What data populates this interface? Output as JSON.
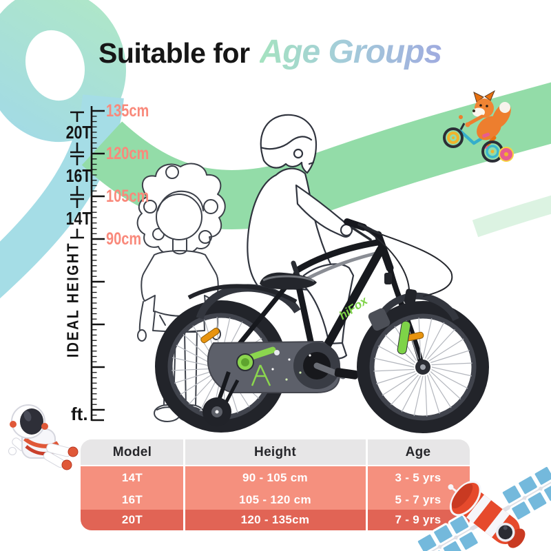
{
  "title": {
    "prefix": "Suitable for",
    "highlight": "Age Groups"
  },
  "ruler": {
    "ideal_height_label": "IDEAL HEIGHT",
    "unit_label": "ft.",
    "height_marks": [
      "135cm",
      "120cm",
      "105cm",
      "90cm"
    ],
    "model_marks": [
      "20T",
      "16T",
      "14T"
    ]
  },
  "bike": {
    "brand": "hiFox"
  },
  "size_table": {
    "headers": [
      "Model",
      "Height",
      "Age"
    ],
    "rows": [
      [
        "14T",
        "90 - 105 cm",
        "3 - 5 yrs"
      ],
      [
        "16T",
        "105 - 120 cm",
        "5 - 7 yrs"
      ],
      [
        "20T",
        "120 - 135cm",
        "7 - 9 yrs"
      ]
    ]
  },
  "decorations": {
    "fox": "fox-riding-bike",
    "astronaut": "astronaut-toy",
    "satellite": "satellite-toy"
  },
  "colors": {
    "salmon_text": "#F9897B",
    "table_header_bg": "#E7E6E7",
    "table_row_bg": "#F5907E",
    "table_row_dark_bg": "#E16455",
    "ribbon_teal": "#A3DBE4",
    "ribbon_mint": "#AEE6C9",
    "ribbon_green": "#93DCA8",
    "brand_green": "#7ED348",
    "title_gradient_start": "#A5E3C0",
    "title_gradient_end": "#9FABDF"
  }
}
